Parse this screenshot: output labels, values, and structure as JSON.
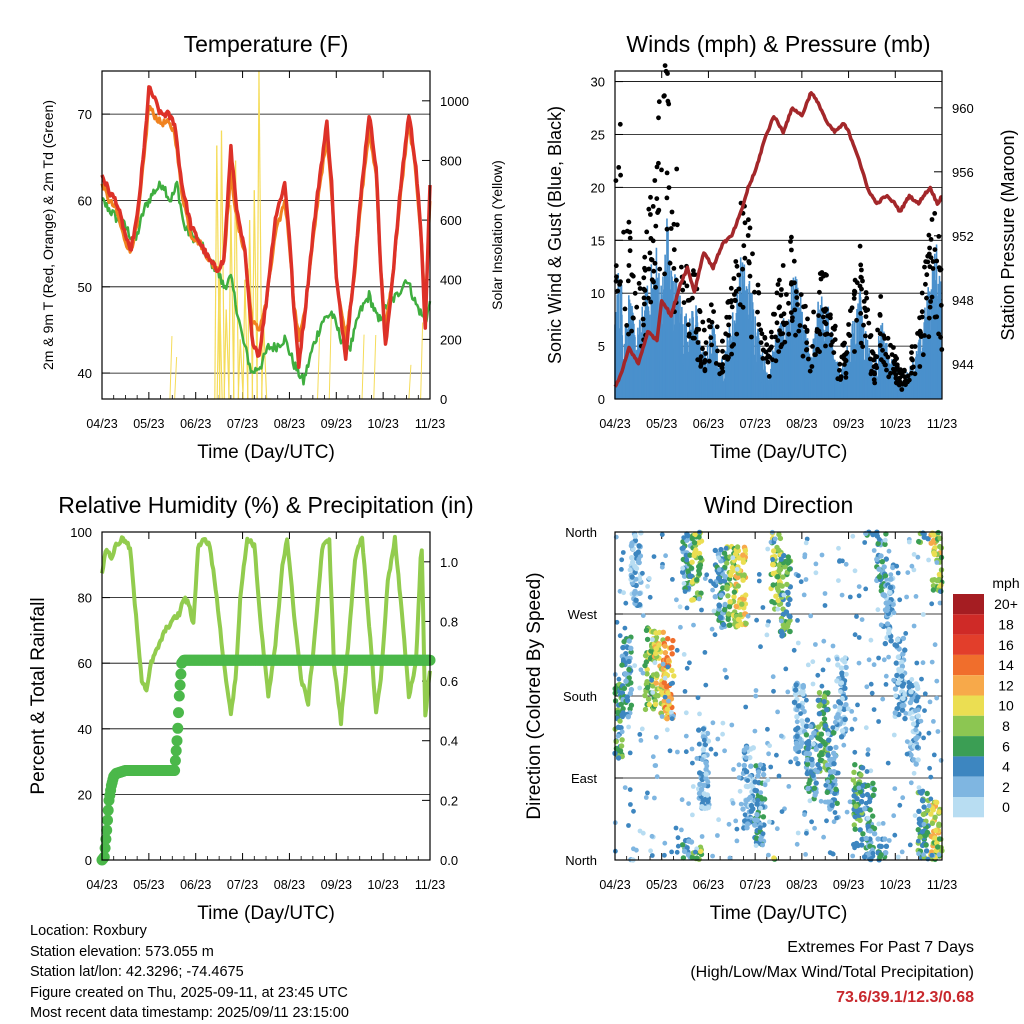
{
  "colors": {
    "temp_2m": "#dd3128",
    "temp_9m": "#f0821f",
    "dewpoint": "#3fae3f",
    "solar": "#f5dc5a",
    "wind": "#4a90cc",
    "gust": "#000000",
    "pressure": "#a3272a",
    "rh": "#92cc4e",
    "precip": "#4bb84a"
  },
  "info": {
    "location": "Location: Roxbury",
    "elevation": "Station elevation: 573.055 m",
    "latlon": "Station lat/lon: 42.3296; -74.4675",
    "created": "Figure created on Thu, 2025-09-11, at 23:45 UTC",
    "timestamp": "Most recent data timestamp: 2025/09/11 23:15:00"
  },
  "extremes": {
    "title": "Extremes For Past 7 Days",
    "subtitle": "(High/Low/Max Wind/Total Precipitation)",
    "values": "73.6/39.1/12.3/0.68"
  },
  "chart_data": [
    {
      "type": "line",
      "title": "Temperature (F)",
      "xlabel": "Time (Day/UTC)",
      "ylabel": "2m & 9m T (Red, Orange) & 2m Td (Green)",
      "y2label": "Solar Insolation (Yellow)",
      "xticks": [
        "04/23",
        "05/23",
        "06/23",
        "07/23",
        "08/23",
        "09/23",
        "10/23",
        "11/23"
      ],
      "xlim": [
        0,
        7
      ],
      "ylim": [
        37,
        75
      ],
      "yticks": [
        40,
        50,
        60,
        70
      ],
      "y2lim": [
        0,
        1100
      ],
      "y2ticks": [
        0,
        200,
        400,
        600,
        800,
        1000
      ],
      "grid": "y",
      "series": [
        {
          "x": [
            0,
            0.15,
            0.3,
            0.45,
            0.6,
            0.75,
            0.9,
            1.0,
            1.1,
            1.25,
            1.4,
            1.55,
            1.7,
            1.9,
            2.1,
            2.3,
            2.45,
            2.6,
            2.75,
            2.9,
            3.05,
            3.2,
            3.35,
            3.5,
            3.7,
            3.9,
            4.0,
            4.1,
            4.2,
            4.35,
            4.5,
            4.65,
            4.8,
            4.9,
            5.0,
            5.2,
            5.4,
            5.55,
            5.7,
            5.85,
            5.95,
            6.05,
            6.2,
            6.4,
            6.55,
            6.7,
            6.82,
            6.9,
            7.0
          ],
          "values": [
            63,
            61,
            60,
            57,
            54,
            58,
            66,
            73,
            72,
            70,
            70,
            69,
            62,
            57,
            55,
            53,
            52,
            53,
            66,
            58,
            54,
            44,
            42,
            48,
            58,
            62,
            56,
            47,
            41,
            48,
            56,
            63,
            69,
            62,
            51,
            42,
            53,
            62,
            70,
            64,
            52,
            43,
            51,
            63,
            70,
            64,
            55,
            45,
            62
          ]
        },
        {
          "x": [
            0,
            0.15,
            0.3,
            0.45,
            0.6,
            0.75,
            0.9,
            1.0,
            1.1,
            1.25,
            1.4,
            1.55,
            1.7,
            1.9,
            2.1,
            2.3,
            2.45,
            2.6,
            2.75,
            2.9,
            3.05,
            3.2,
            3.35,
            3.5,
            3.7,
            3.9,
            4.0,
            4.1,
            4.2,
            4.35,
            4.5,
            4.65,
            4.8,
            4.9,
            5.0,
            5.2,
            5.4,
            5.55,
            5.7,
            5.85,
            5.95,
            6.05,
            6.2,
            6.4,
            6.55,
            6.7,
            6.82,
            6.9,
            7.0
          ],
          "values": [
            62,
            60,
            59,
            56,
            54,
            57,
            65,
            71,
            70,
            69,
            69,
            68,
            61,
            56,
            55,
            53,
            52,
            53,
            63,
            57,
            54,
            46,
            45,
            48,
            56,
            60,
            55,
            48,
            44,
            48,
            55,
            62,
            67,
            61,
            51,
            44,
            52,
            61,
            68,
            63,
            52,
            45,
            51,
            62,
            69,
            63,
            55,
            47,
            60
          ]
        },
        {
          "x": [
            0,
            0.3,
            0.5,
            0.7,
            0.9,
            1.1,
            1.3,
            1.45,
            1.55,
            1.6,
            1.75,
            1.9,
            2.1,
            2.3,
            2.45,
            2.6,
            2.75,
            3.0,
            3.2,
            3.4,
            3.55,
            3.7,
            3.9,
            4.1,
            4.3,
            4.5,
            4.7,
            4.9,
            5.1,
            5.3,
            5.5,
            5.7,
            5.9,
            6.1,
            6.3,
            6.5,
            6.7,
            6.9,
            7.0
          ],
          "values": [
            60,
            58,
            57,
            55,
            59,
            61,
            62,
            60,
            61,
            62,
            57,
            56,
            55,
            53,
            52,
            50,
            51,
            44,
            40,
            41,
            43,
            43,
            44,
            41,
            39,
            43,
            46,
            47,
            44,
            43,
            47,
            49,
            46,
            48,
            49,
            51,
            48,
            46,
            48
          ]
        },
        {
          "x": [
            2.35,
            2.45,
            2.5,
            2.55,
            2.65,
            2.75,
            2.85,
            2.95,
            3.05,
            3.15,
            3.25,
            3.35,
            3.45,
            3.55
          ],
          "values": [
            0,
            850,
            420,
            900,
            300,
            650,
            800,
            200,
            400,
            600,
            700,
            1100,
            250,
            0
          ]
        }
      ]
    },
    {
      "type": "scatter",
      "title": "Winds (mph) & Pressure (mb)",
      "xlabel": "Time (Day/UTC)",
      "ylabel": "Sonic Wind & Gust (Blue, Black)",
      "y2label": "Station Pressure (Maroon)",
      "xticks": [
        "04/23",
        "05/23",
        "06/23",
        "07/23",
        "08/23",
        "09/23",
        "10/23",
        "11/23"
      ],
      "xlim": [
        0,
        7
      ],
      "ylim": [
        0,
        31
      ],
      "yticks": [
        0,
        5,
        10,
        15,
        20,
        25,
        30
      ],
      "y2lim": [
        941.8,
        962.3
      ],
      "y2ticks": [
        944,
        948,
        952,
        956,
        960
      ],
      "grid": "y",
      "series": [
        {
          "x": [
            0,
            0.15,
            0.3,
            0.5,
            0.7,
            0.9,
            1.0,
            1.2,
            1.4,
            1.55,
            1.7,
            1.9,
            2.1,
            2.3,
            2.5,
            2.7,
            2.85,
            3.0,
            3.2,
            3.4,
            3.6,
            3.8,
            4.0,
            4.2,
            4.4,
            4.55,
            4.7,
            4.9,
            5.0,
            5.2,
            5.4,
            5.6,
            5.8,
            6.0,
            6.1,
            6.3,
            6.5,
            6.6,
            6.75,
            6.9,
            7.0
          ],
          "values": [
            942.5,
            943.5,
            945,
            944,
            946,
            945.5,
            948,
            947,
            949,
            950,
            948.5,
            951,
            950,
            951.5,
            952,
            953.5,
            955,
            956,
            958,
            959.5,
            958.5,
            960,
            959.5,
            961,
            960,
            959,
            958.5,
            959,
            958.5,
            957,
            955,
            954,
            954.5,
            954,
            953.5,
            954.5,
            954,
            954.5,
            955,
            954,
            954.5
          ]
        },
        {
          "x": [
            0,
            0.1,
            0.2,
            0.3,
            0.45,
            0.6,
            0.75,
            0.9,
            1.0,
            1.1,
            1.2,
            1.3,
            1.45,
            1.6,
            1.7,
            1.8,
            1.95,
            2.1,
            2.25,
            2.4,
            2.55,
            2.7,
            2.85,
            3.0,
            3.15,
            3.3,
            3.45,
            3.6,
            3.75,
            3.9,
            4.05,
            4.2,
            4.35,
            4.5,
            4.65,
            4.8,
            4.95,
            5.1,
            5.25,
            5.4,
            5.55,
            5.7,
            5.85,
            6.0,
            6.15,
            6.3,
            6.45,
            6.6,
            6.75,
            6.9,
            7.0
          ],
          "values": [
            6,
            9,
            5,
            7,
            4,
            6,
            8,
            10,
            7,
            12,
            9,
            8,
            6,
            5,
            7,
            4,
            3,
            5,
            2,
            4,
            6,
            9,
            8,
            6,
            3,
            2,
            4,
            5,
            7,
            8,
            5,
            3,
            6,
            7,
            4,
            2,
            3,
            5,
            7,
            4,
            2,
            5,
            3,
            2,
            1,
            2,
            3,
            5,
            8,
            10,
            6
          ]
        },
        {
          "x": [
            0,
            0.1,
            0.2,
            0.3,
            0.45,
            0.6,
            0.75,
            0.9,
            1.0,
            1.1,
            1.2,
            1.3,
            1.45,
            1.6,
            1.7,
            1.8,
            1.95,
            2.1,
            2.25,
            2.4,
            2.55,
            2.7,
            2.85,
            3.0,
            3.15,
            3.3,
            3.45,
            3.6,
            3.75,
            3.9,
            4.05,
            4.2,
            4.35,
            4.5,
            4.65,
            4.8,
            4.95,
            5.1,
            5.25,
            5.4,
            5.55,
            5.7,
            5.85,
            6.0,
            6.15,
            6.3,
            6.45,
            6.6,
            6.75,
            6.9,
            7.0
          ],
          "values": [
            18,
            25,
            12,
            15,
            10,
            11,
            17,
            24,
            26,
            29,
            22,
            20,
            15,
            10,
            12,
            8,
            5,
            9,
            4,
            8,
            11,
            18,
            16,
            12,
            6,
            5,
            9,
            11,
            14,
            13,
            9,
            6,
            10,
            12,
            8,
            4,
            5,
            9,
            13,
            8,
            3,
            9,
            5,
            4,
            2,
            4,
            5,
            10,
            16,
            17,
            10
          ]
        }
      ]
    },
    {
      "type": "line",
      "title": "Relative Humidity (%) & Precipitation (in)",
      "xlabel": "Time (Day/UTC)",
      "ylabel": "Percent & Total Rainfall",
      "xticks": [
        "04/23",
        "05/23",
        "06/23",
        "07/23",
        "08/23",
        "09/23",
        "10/23",
        "11/23"
      ],
      "xlim": [
        0,
        7
      ],
      "ylim": [
        0,
        100
      ],
      "yticks": [
        0,
        20,
        40,
        60,
        80,
        100
      ],
      "y2lim": [
        0,
        1.1
      ],
      "y2ticks": [
        0.0,
        0.2,
        0.4,
        0.6,
        0.8,
        1.0
      ],
      "grid": "y",
      "series": [
        {
          "x": [
            0,
            0.1,
            0.2,
            0.3,
            0.45,
            0.6,
            0.75,
            0.85,
            0.95,
            1.05,
            1.2,
            1.35,
            1.5,
            1.65,
            1.75,
            1.85,
            1.95,
            2.05,
            2.15,
            2.3,
            2.45,
            2.6,
            2.75,
            2.85,
            2.95,
            3.1,
            3.25,
            3.4,
            3.55,
            3.7,
            3.85,
            3.95,
            4.1,
            4.25,
            4.4,
            4.55,
            4.7,
            4.85,
            4.95,
            5.1,
            5.25,
            5.4,
            5.55,
            5.7,
            5.85,
            5.95,
            6.1,
            6.25,
            6.4,
            6.55,
            6.7,
            6.82,
            6.9,
            7.0
          ],
          "values": [
            88,
            95,
            92,
            96,
            98,
            95,
            70,
            55,
            52,
            60,
            65,
            70,
            73,
            75,
            80,
            78,
            72,
            95,
            98,
            96,
            80,
            60,
            45,
            55,
            80,
            98,
            96,
            70,
            50,
            65,
            90,
            98,
            75,
            55,
            48,
            70,
            95,
            98,
            60,
            42,
            65,
            92,
            98,
            72,
            45,
            55,
            85,
            98,
            75,
            50,
            60,
            98,
            44,
            58
          ]
        },
        {
          "x": [
            0,
            0.05,
            0.1,
            0.15,
            0.2,
            0.25,
            0.3,
            0.5,
            1.0,
            1.4,
            1.55,
            1.6,
            1.62,
            1.65,
            1.7,
            1.75,
            2.0,
            3.0,
            4.0,
            5.0,
            6.0,
            7.0
          ],
          "values": [
            0,
            0.01,
            0.1,
            0.2,
            0.25,
            0.28,
            0.29,
            0.3,
            0.3,
            0.3,
            0.3,
            0.4,
            0.45,
            0.55,
            0.66,
            0.67,
            0.67,
            0.67,
            0.67,
            0.67,
            0.67,
            0.67
          ]
        }
      ]
    },
    {
      "type": "scatter",
      "title": "Wind Direction",
      "xlabel": "Time (Day/UTC)",
      "ylabel": "Direction (Colored By Speed)",
      "xticks": [
        "04/23",
        "05/23",
        "06/23",
        "07/23",
        "08/23",
        "09/23",
        "10/23",
        "11/23"
      ],
      "xlim": [
        0,
        7
      ],
      "ylim": [
        0,
        360
      ],
      "yticks": [
        "North",
        "East",
        "South",
        "West",
        "North"
      ],
      "grid": "y",
      "legend": {
        "title": "mph",
        "labels": [
          "20+",
          "18",
          "16",
          "14",
          "12",
          "10",
          "8",
          "6",
          "4",
          "2",
          "0"
        ],
        "colors": [
          "#a51d22",
          "#cf2a27",
          "#e23e2b",
          "#f06e2c",
          "#f7a94a",
          "#ebde52",
          "#8cc652",
          "#3b9e54",
          "#3d86c0",
          "#7fb6e1",
          "#b8ddf2"
        ]
      },
      "clusters": [
        {
          "x": 0.05,
          "dir": 150,
          "speed": 6
        },
        {
          "x": 0.25,
          "dir": 200,
          "speed": 4
        },
        {
          "x": 0.45,
          "dir": 320,
          "speed": 2
        },
        {
          "x": 0.75,
          "dir": 210,
          "speed": 8
        },
        {
          "x": 0.95,
          "dir": 205,
          "speed": 10
        },
        {
          "x": 1.15,
          "dir": 200,
          "speed": 12
        },
        {
          "x": 1.55,
          "dir": 340,
          "speed": 4
        },
        {
          "x": 1.75,
          "dir": 330,
          "speed": 8
        },
        {
          "x": 1.9,
          "dir": 100,
          "speed": 2
        },
        {
          "x": 2.25,
          "dir": 300,
          "speed": 4
        },
        {
          "x": 2.5,
          "dir": 300,
          "speed": 8
        },
        {
          "x": 2.7,
          "dir": 300,
          "speed": 10
        },
        {
          "x": 2.85,
          "dir": 80,
          "speed": 2
        },
        {
          "x": 3.1,
          "dir": 60,
          "speed": 4
        },
        {
          "x": 3.45,
          "dir": 320,
          "speed": 8
        },
        {
          "x": 3.65,
          "dir": 290,
          "speed": 6
        },
        {
          "x": 3.95,
          "dir": 150,
          "speed": 2
        },
        {
          "x": 4.2,
          "dir": 110,
          "speed": 4
        },
        {
          "x": 4.45,
          "dir": 140,
          "speed": 6
        },
        {
          "x": 4.65,
          "dir": 100,
          "speed": 4
        },
        {
          "x": 4.85,
          "dir": 180,
          "speed": 2
        },
        {
          "x": 5.2,
          "dir": 60,
          "speed": 6
        },
        {
          "x": 5.45,
          "dir": 40,
          "speed": 4
        },
        {
          "x": 5.7,
          "dir": 340,
          "speed": 4
        },
        {
          "x": 5.85,
          "dir": 280,
          "speed": 2
        },
        {
          "x": 6.1,
          "dir": 200,
          "speed": 2
        },
        {
          "x": 6.4,
          "dir": 150,
          "speed": 2
        },
        {
          "x": 6.6,
          "dir": 30,
          "speed": 6
        },
        {
          "x": 6.85,
          "dir": 20,
          "speed": 10
        },
        {
          "x": 6.9,
          "dir": 340,
          "speed": 8
        }
      ]
    }
  ]
}
